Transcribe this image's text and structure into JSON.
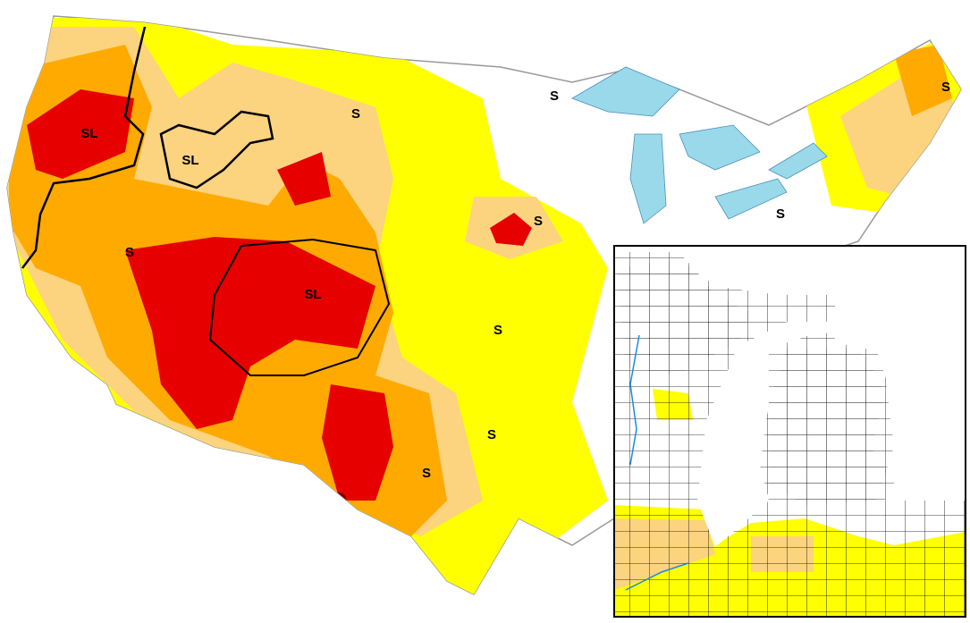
{
  "map": {
    "labels": [
      "SL",
      "SL",
      "S",
      "S",
      "S",
      "S",
      "S",
      "S",
      "SL",
      "S",
      "S",
      "S"
    ]
  }
}
